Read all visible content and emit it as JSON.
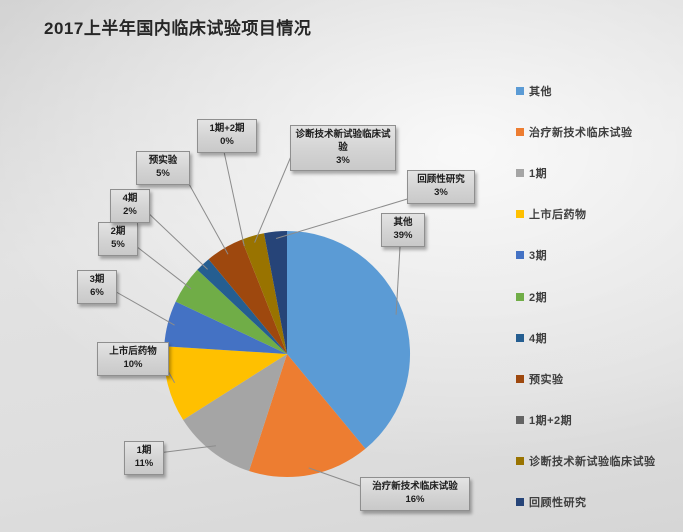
{
  "page": {
    "title": "2017上半年国内临床试验项目情况"
  },
  "chart_data": {
    "type": "pie",
    "title": "2017上半年国内临床试验项目情况",
    "legend_position": "right",
    "start_angle_deg": 0,
    "direction": "clockwise",
    "data_labels": "category name + percent, boxed callouts with leader lines",
    "slices": [
      {
        "label": "其他",
        "value": 39,
        "pct_label": "39%",
        "color": "#5B9BD5"
      },
      {
        "label": "治疗新技术临床试验",
        "value": 16,
        "pct_label": "16%",
        "color": "#ED7D31"
      },
      {
        "label": "1期",
        "value": 11,
        "pct_label": "11%",
        "color": "#A5A5A5"
      },
      {
        "label": "上市后药物",
        "value": 10,
        "pct_label": "10%",
        "color": "#FFC000"
      },
      {
        "label": "3期",
        "value": 6,
        "pct_label": "6%",
        "color": "#4472C4"
      },
      {
        "label": "2期",
        "value": 5,
        "pct_label": "5%",
        "color": "#70AD47"
      },
      {
        "label": "4期",
        "value": 2,
        "pct_label": "2%",
        "color": "#255E91"
      },
      {
        "label": "预实验",
        "value": 5,
        "pct_label": "5%",
        "color": "#9E480E"
      },
      {
        "label": "1期+2期",
        "value": 0,
        "pct_label": "0%",
        "color": "#636363"
      },
      {
        "label": "诊断技术新试验临床试验",
        "value": 3,
        "pct_label": "3%",
        "color": "#997300"
      },
      {
        "label": "回顾性研究",
        "value": 3,
        "pct_label": "3%",
        "color": "#264478"
      }
    ]
  },
  "colors": {
    "title_text": "#262626",
    "callout_bg": "#d9d9d9",
    "callout_border": "#8f8f8f",
    "callout_text": "#1c1c1c",
    "leader_line": "#8c8c8c",
    "legend_text": "#3f3f3f",
    "background": "#e0e0e0"
  }
}
